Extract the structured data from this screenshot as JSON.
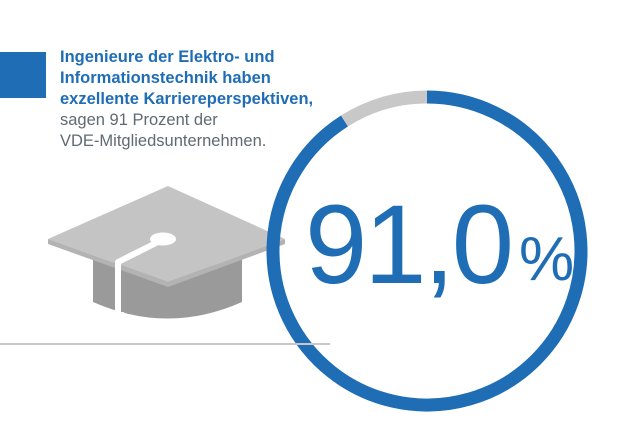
{
  "headline_lines": [
    "Ingenieure der Elektro- und",
    "Informationstechnik haben",
    "exzellente Karriereperspektiven,"
  ],
  "subline_lines": [
    "sagen 91 Prozent der",
    "VDE-Mitgliedsunternehmen."
  ],
  "value_text": "91,0",
  "unit_text": "%",
  "colors": {
    "accent": "#1F6DB5",
    "remainder": "#C8C8C8",
    "text_gray": "#5F6A72",
    "cap_light": "#C4C4C4",
    "cap_dark": "#9A9A9A"
  },
  "icon": "graduation-cap-icon",
  "chart_data": {
    "type": "pie",
    "style": "donut-ring",
    "slices": [
      {
        "value": 91.0
      },
      {
        "value": 9.0
      }
    ],
    "unit": "%",
    "center_label": "91,0 %"
  }
}
